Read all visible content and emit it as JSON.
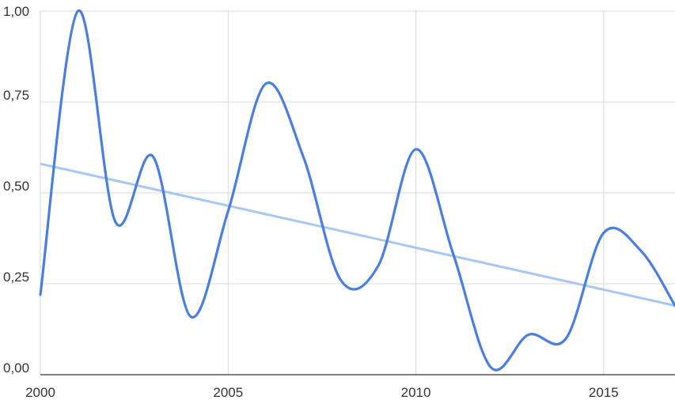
{
  "chart_data": {
    "type": "line",
    "x_ticks": [
      2000,
      2005,
      2010,
      2015
    ],
    "y_ticks": [
      "0,00",
      "0,25",
      "0,50",
      "0,75",
      "1,00"
    ],
    "y_tick_values": [
      0,
      0.25,
      0.5,
      0.75,
      1.0
    ],
    "xlim": [
      2000,
      2016.9
    ],
    "ylim": [
      0,
      1.0
    ],
    "grid": true,
    "series": [
      {
        "color": "#4a7fe0",
        "smooth": true,
        "x": [
          2000.0,
          2001.0,
          2002.0,
          2003.0,
          2004.0,
          2005.0,
          2006.0,
          2007.0,
          2008.0,
          2009.0,
          2010.0,
          2011.0,
          2012.0,
          2013.0,
          2014.0,
          2015.0,
          2016.0,
          2016.9
        ],
        "y": [
          0.22,
          1.0,
          0.42,
          0.6,
          0.16,
          0.45,
          0.8,
          0.6,
          0.26,
          0.3,
          0.62,
          0.33,
          0.02,
          0.11,
          0.1,
          0.39,
          0.34,
          0.19
        ]
      }
    ],
    "trendline": {
      "color": "#a8c7f5",
      "x": [
        2000.0,
        2016.9
      ],
      "y": [
        0.58,
        0.19
      ]
    }
  }
}
